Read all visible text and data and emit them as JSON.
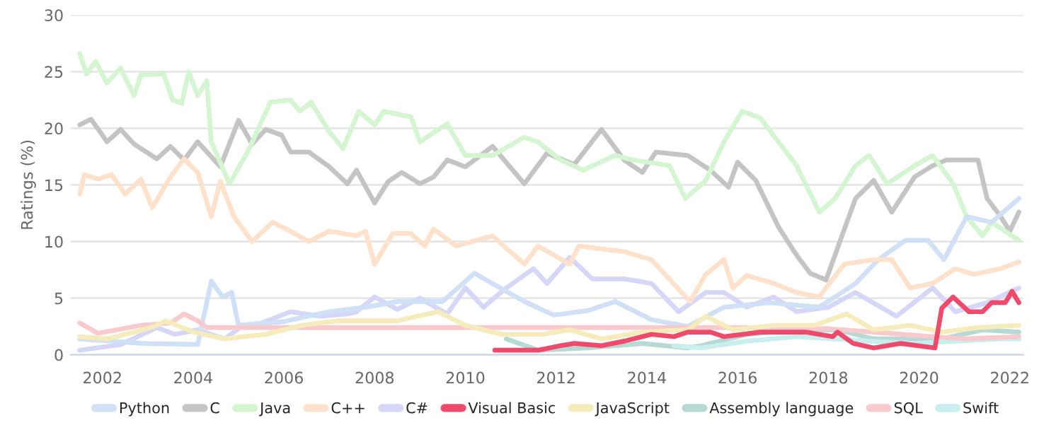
{
  "chart_data": {
    "type": "line",
    "ylabel": "Ratings (%)",
    "xlim": [
      2001.3,
      2022.3
    ],
    "ylim": [
      0,
      30
    ],
    "xticks": [
      2002,
      2004,
      2006,
      2008,
      2010,
      2012,
      2014,
      2016,
      2018,
      2020,
      2022
    ],
    "yticks": [
      0,
      5,
      10,
      15,
      20,
      25,
      30
    ],
    "grid": "y",
    "legend": "bottom",
    "marker": "none",
    "line_style": "solid",
    "series": [
      {
        "name": "Python",
        "color": "#cfe0f7",
        "x": [
          2001.5,
          2002.9,
          2004.1,
          2004.4,
          2004.65,
          2004.85,
          2005.0,
          2005.95,
          2007.0,
          2007.8,
          2008.5,
          2009.5,
          2010.2,
          2011.3,
          2011.95,
          2012.7,
          2013.3,
          2014.1,
          2014.9,
          2015.7,
          2016.7,
          2017.8,
          2018.6,
          2019.1,
          2019.7,
          2020.2,
          2020.55,
          2021.05,
          2021.6,
          2022.2
        ],
        "values": [
          1.4,
          1.0,
          0.9,
          6.5,
          5.1,
          5.5,
          2.6,
          2.9,
          3.8,
          4.2,
          4.7,
          4.7,
          7.2,
          4.7,
          3.5,
          3.9,
          4.7,
          3.1,
          2.5,
          4.2,
          4.6,
          4.2,
          6.3,
          8.4,
          10.1,
          10.1,
          8.4,
          12.2,
          11.7,
          13.8
        ]
      },
      {
        "name": "C",
        "color": "#c4c4c4",
        "x": [
          2001.5,
          2001.75,
          2002.0,
          2002.1,
          2002.4,
          2002.7,
          2003.2,
          2003.5,
          2003.8,
          2004.1,
          2004.6,
          2005.0,
          2005.3,
          2005.6,
          2005.95,
          2006.15,
          2006.55,
          2007.0,
          2007.4,
          2007.6,
          2008.0,
          2008.3,
          2008.6,
          2009.0,
          2009.3,
          2009.6,
          2010.0,
          2010.6,
          2011.3,
          2011.8,
          2012.4,
          2013.0,
          2013.5,
          2013.9,
          2014.2,
          2014.9,
          2015.4,
          2015.8,
          2016.0,
          2016.4,
          2016.9,
          2017.3,
          2017.6,
          2017.95,
          2018.3,
          2018.6,
          2019.0,
          2019.4,
          2019.9,
          2020.3,
          2020.6,
          2021.3,
          2021.5,
          2021.8,
          2022.0,
          2022.2
        ],
        "values": [
          20.3,
          20.8,
          19.4,
          18.8,
          19.9,
          18.6,
          17.3,
          18.4,
          17.2,
          18.8,
          16.6,
          20.7,
          18.6,
          19.9,
          19.4,
          17.9,
          17.9,
          16.6,
          15.1,
          16.3,
          13.4,
          15.3,
          16.1,
          15.1,
          15.7,
          17.2,
          16.6,
          18.4,
          15.1,
          17.8,
          16.8,
          19.9,
          17.2,
          16.1,
          17.9,
          17.6,
          16.3,
          14.8,
          17.0,
          15.4,
          11.3,
          8.8,
          7.2,
          6.6,
          10.5,
          13.8,
          15.4,
          12.6,
          15.7,
          16.7,
          17.2,
          17.2,
          13.8,
          12.2,
          10.9,
          12.6
        ]
      },
      {
        "name": "Java",
        "color": "#d3f5cf",
        "x": [
          2001.5,
          2001.65,
          2001.85,
          2002.1,
          2002.4,
          2002.7,
          2002.85,
          2003.35,
          2003.55,
          2003.75,
          2003.9,
          2004.1,
          2004.3,
          2004.4,
          2004.8,
          2005.2,
          2005.7,
          2006.15,
          2006.35,
          2006.6,
          2007.0,
          2007.3,
          2007.65,
          2008.0,
          2008.2,
          2008.8,
          2009.0,
          2009.6,
          2010.0,
          2010.6,
          2011.3,
          2011.6,
          2012.1,
          2012.6,
          2013.3,
          2013.7,
          2014.5,
          2014.85,
          2015.3,
          2015.7,
          2016.1,
          2016.5,
          2016.9,
          2017.3,
          2017.8,
          2018.15,
          2018.6,
          2018.9,
          2019.3,
          2019.9,
          2020.3,
          2020.75,
          2021.05,
          2021.4,
          2021.6,
          2022.2
        ],
        "values": [
          26.6,
          24.8,
          25.9,
          24.0,
          25.3,
          22.9,
          24.7,
          24.8,
          22.5,
          22.2,
          25.0,
          22.9,
          24.2,
          18.8,
          15.1,
          17.9,
          22.3,
          22.5,
          21.5,
          22.3,
          19.7,
          18.2,
          21.5,
          20.3,
          21.5,
          21.0,
          18.8,
          20.4,
          17.6,
          17.6,
          19.2,
          18.8,
          17.2,
          16.3,
          17.6,
          17.2,
          16.7,
          13.8,
          15.4,
          18.8,
          21.5,
          20.9,
          18.8,
          16.7,
          12.6,
          13.8,
          16.7,
          17.6,
          15.1,
          16.7,
          17.6,
          15.1,
          12.2,
          10.5,
          11.7,
          10.1
        ]
      },
      {
        "name": "C++",
        "color": "#fde1cb",
        "x": [
          2001.5,
          2001.6,
          2001.9,
          2002.2,
          2002.5,
          2002.85,
          2003.1,
          2003.5,
          2003.8,
          2004.1,
          2004.4,
          2004.6,
          2004.9,
          2005.3,
          2005.75,
          2006.15,
          2006.55,
          2007.0,
          2007.6,
          2007.8,
          2008.0,
          2008.4,
          2008.8,
          2009.1,
          2009.3,
          2009.8,
          2010.6,
          2011.3,
          2011.6,
          2012.3,
          2012.5,
          2013.5,
          2014.1,
          2014.95,
          2015.3,
          2015.7,
          2015.9,
          2016.2,
          2016.8,
          2017.3,
          2017.8,
          2018.35,
          2019.0,
          2019.4,
          2019.8,
          2020.3,
          2020.8,
          2021.2,
          2021.8,
          2022.2
        ],
        "values": [
          14.2,
          15.9,
          15.5,
          15.9,
          14.2,
          15.5,
          13.0,
          15.7,
          17.3,
          16.1,
          12.2,
          15.3,
          12.2,
          10.0,
          11.7,
          10.9,
          10.0,
          10.9,
          10.5,
          10.9,
          8.0,
          10.7,
          10.7,
          9.6,
          11.1,
          9.6,
          10.5,
          8.0,
          9.6,
          8.0,
          9.6,
          9.1,
          8.4,
          4.7,
          7.1,
          8.4,
          5.9,
          7.0,
          6.3,
          5.5,
          5.1,
          8.0,
          8.4,
          8.4,
          5.9,
          6.3,
          7.6,
          7.1,
          7.6,
          8.2
        ]
      },
      {
        "name": "C#",
        "color": "#d6d6f8",
        "x": [
          2001.5,
          2002.4,
          2003.2,
          2003.6,
          2004.1,
          2004.7,
          2005.1,
          2005.5,
          2006.15,
          2006.8,
          2007.4,
          2007.6,
          2008.0,
          2008.5,
          2009.0,
          2009.6,
          2010.0,
          2010.4,
          2010.9,
          2011.5,
          2011.8,
          2012.3,
          2012.8,
          2013.5,
          2014.1,
          2014.7,
          2015.3,
          2015.7,
          2016.2,
          2016.8,
          2017.3,
          2018.0,
          2018.6,
          2019.5,
          2020.3,
          2020.8,
          2021.5,
          2022.2
        ],
        "values": [
          0.4,
          0.9,
          2.4,
          1.8,
          2.2,
          1.4,
          2.6,
          2.8,
          3.8,
          3.4,
          3.6,
          3.8,
          5.1,
          4.0,
          5.0,
          3.6,
          5.9,
          4.2,
          5.9,
          7.6,
          6.3,
          8.6,
          6.7,
          6.7,
          6.3,
          3.8,
          5.5,
          5.5,
          4.2,
          5.1,
          3.8,
          4.2,
          5.5,
          3.4,
          5.9,
          3.8,
          4.6,
          5.9
        ]
      },
      {
        "name": "Visual Basic",
        "color": "#ef4a6b",
        "x": [
          2010.65,
          2011.6,
          2012.1,
          2012.4,
          2013.0,
          2013.5,
          2013.9,
          2014.1,
          2014.6,
          2014.9,
          2015.4,
          2015.7,
          2016.5,
          2017.5,
          2017.8,
          2018.1,
          2018.2,
          2018.55,
          2019.0,
          2019.6,
          2020.35,
          2020.5,
          2020.75,
          2021.1,
          2021.4,
          2021.6,
          2021.9,
          2022.05,
          2022.2
        ],
        "values": [
          0.4,
          0.4,
          0.8,
          1.0,
          0.8,
          1.2,
          1.6,
          1.8,
          1.6,
          2.0,
          2.0,
          1.6,
          2.0,
          2.0,
          1.8,
          1.6,
          2.0,
          1.0,
          0.6,
          1.0,
          0.6,
          4.1,
          5.1,
          3.8,
          3.8,
          4.6,
          4.6,
          5.6,
          4.6
        ]
      },
      {
        "name": "JavaScript",
        "color": "#f6ebbb",
        "x": [
          2001.5,
          2002.1,
          2002.9,
          2003.2,
          2003.4,
          2004.0,
          2004.7,
          2005.6,
          2006.4,
          2007.2,
          2008.5,
          2009.4,
          2010.0,
          2010.8,
          2011.7,
          2012.3,
          2013.0,
          2013.9,
          2014.9,
          2015.3,
          2015.9,
          2016.8,
          2017.7,
          2018.4,
          2019.0,
          2019.8,
          2020.5,
          2021.3,
          2022.2
        ],
        "values": [
          1.6,
          1.4,
          2.2,
          2.6,
          3.0,
          2.0,
          1.4,
          1.8,
          2.6,
          3.0,
          3.0,
          3.8,
          2.6,
          1.8,
          1.8,
          2.2,
          1.4,
          2.0,
          2.2,
          3.4,
          2.2,
          2.6,
          2.6,
          3.6,
          2.2,
          2.6,
          2.0,
          2.4,
          2.6
        ]
      },
      {
        "name": "Assembly language",
        "color": "#b6d9d4",
        "x": [
          2010.9,
          2011.6,
          2012.7,
          2013.9,
          2014.9,
          2015.2,
          2016.2,
          2017.3,
          2018.2,
          2019.0,
          2020.5,
          2021.4,
          2022.2
        ],
        "values": [
          1.4,
          0.4,
          0.6,
          1.0,
          0.6,
          0.8,
          1.8,
          2.2,
          2.2,
          1.4,
          1.4,
          2.2,
          2.0
        ]
      },
      {
        "name": "SQL",
        "color": "#f8c9cd",
        "x": [
          2001.5,
          2001.9,
          2002.85,
          2003.5,
          2003.8,
          2004.1,
          2004.3,
          2008.0,
          2012.0,
          2016.0,
          2018.0,
          2019.0,
          2020.3,
          2021.0,
          2022.2
        ],
        "values": [
          2.8,
          1.9,
          2.6,
          2.8,
          3.6,
          3.0,
          2.4,
          2.4,
          2.4,
          2.4,
          2.3,
          2.0,
          1.6,
          1.4,
          1.6
        ]
      },
      {
        "name": "Swift",
        "color": "#c9eeee",
        "x": [
          2014.6,
          2015.2,
          2016.2,
          2017.3,
          2018.9,
          2019.9,
          2020.8,
          2021.8,
          2022.2
        ],
        "values": [
          0.8,
          0.6,
          1.2,
          1.6,
          1.2,
          1.0,
          1.2,
          1.4,
          1.4
        ]
      }
    ]
  }
}
